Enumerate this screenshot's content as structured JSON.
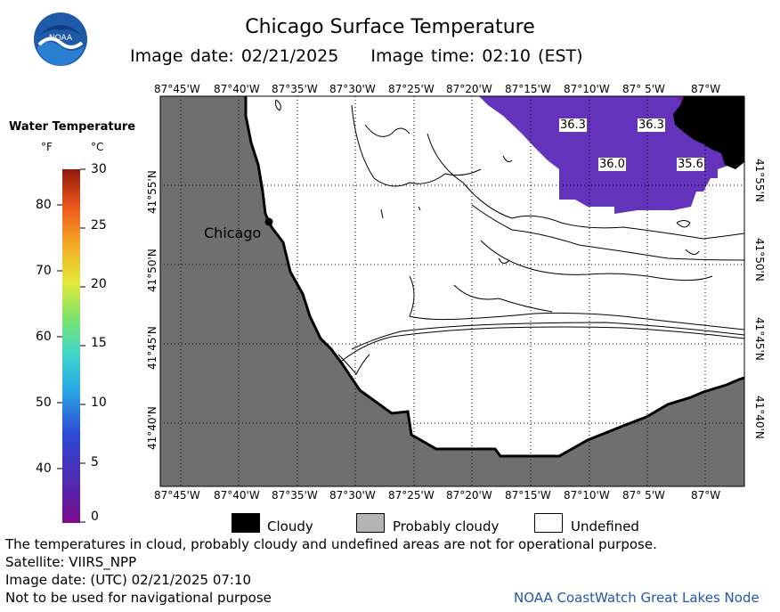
{
  "title": "Chicago Surface Temperature",
  "image_date_label": "Image date: 02/21/2025",
  "image_time_label": "Image time: 02:10 (EST)",
  "logo_text": "NOAA",
  "colorbar": {
    "title": "Water Temperature",
    "unit_f": "°F",
    "unit_c": "°C",
    "f_ticks": [
      "80",
      "70",
      "60",
      "50",
      "40"
    ],
    "c_ticks": [
      "30",
      "25",
      "20",
      "15",
      "10",
      "5",
      "0"
    ]
  },
  "lon_labels": [
    "87°45'W",
    "87°40'W",
    "87°35'W",
    "87°30'W",
    "87°25'W",
    "87°20'W",
    "87°15'W",
    "87°10'W",
    "87° 5'W",
    "87°W"
  ],
  "lat_labels": [
    "41°55'N",
    "41°50'N",
    "41°45'N",
    "41°40'N"
  ],
  "city_label": "Chicago",
  "temp_labels": [
    "36.3",
    "36.3",
    "36.0",
    "35.6"
  ],
  "legend": {
    "cloudy": "Cloudy",
    "probably_cloudy": "Probably cloudy",
    "undefined": "Undefined"
  },
  "footer": {
    "disclaimer": "The temperatures in cloud, probably cloudy and undefined areas are not for operational purpose.",
    "satellite": "Satellite: VIIRS_NPP",
    "image_date_utc": "Image date: (UTC) 02/21/2025  07:10",
    "navigation": "Not to be used for navigational purpose",
    "credit": "NOAA CoastWatch Great Lakes Node"
  },
  "colors": {
    "land": "#6f6f6f",
    "water_purple": "#6433bc",
    "cloudy": "#000000",
    "probably_cloudy": "#b4b4b4",
    "undefined": "#ffffff",
    "credit_text": "#2456b0"
  }
}
